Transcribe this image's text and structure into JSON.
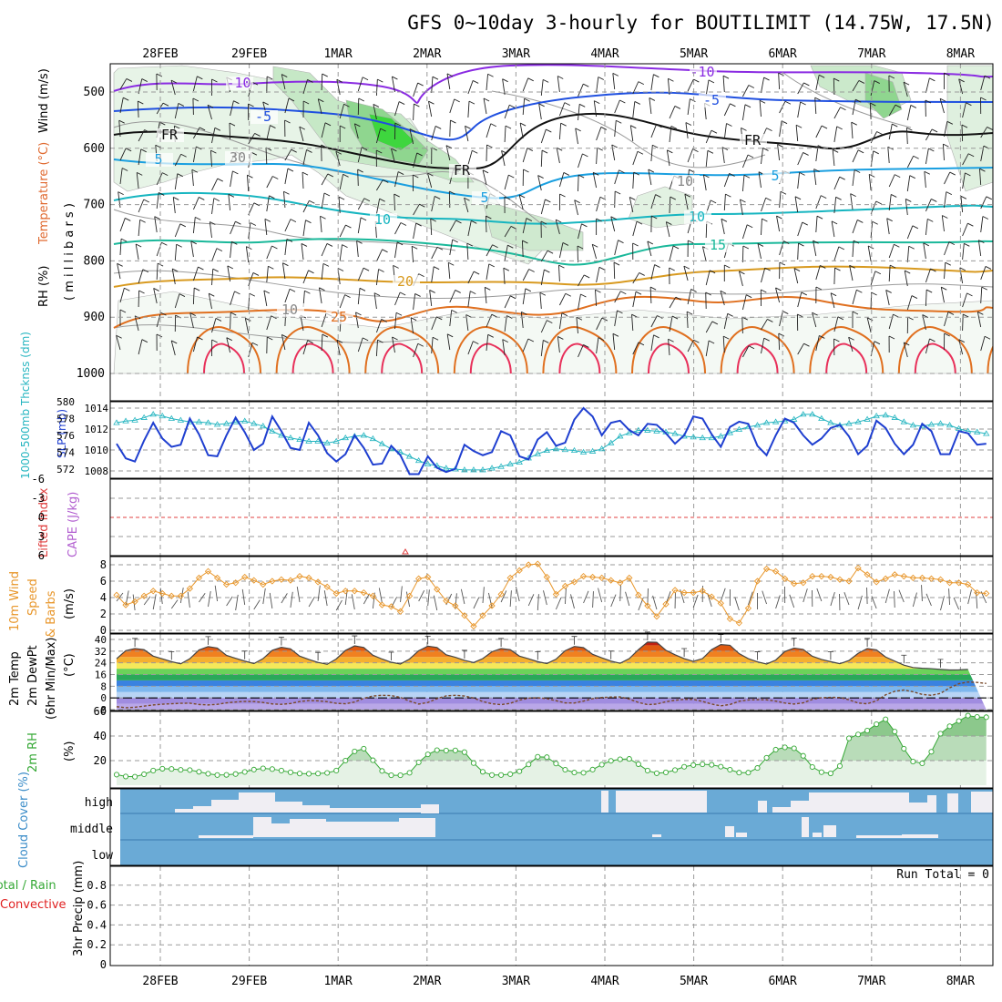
{
  "title": "GFS 0~10day 3-hourly for BOUTILIMIT (14.75W, 17.5N)",
  "colors": {
    "grid": "#9a9a9a",
    "frame": "#000000",
    "slp": "#1f3fd0",
    "thickness": "#25b5c0",
    "wind10": "#e8962a",
    "rh_green": "#35a835",
    "cloud_bg": "#6aaad6",
    "cloud_fill": "#f0eef3",
    "lifted": "#e04040",
    "cape": "#b25fd0",
    "temp_cold": "#1f3fd0",
    "temp_warm": "#e02020"
  },
  "chart_data": {
    "type": "meteogram",
    "dates": [
      "28FEB",
      "29FEB",
      "1MAR",
      "2MAR",
      "3MAR",
      "4MAR",
      "5MAR",
      "6MAR",
      "7MAR",
      "8MAR"
    ],
    "upper_air": {
      "ylabel_parts": [
        "RH (%)",
        "Temperature (°C)",
        "Wind (m/s)"
      ],
      "ylabel_unit": "( m i l l i b a r s )",
      "pressure_ticks": [
        500,
        600,
        700,
        800,
        900,
        1000
      ],
      "temp_labels": [
        "-10",
        "-5",
        "FR",
        "5",
        "10",
        "15",
        "20",
        "25",
        "-10",
        "-5",
        "FR",
        "FR",
        "5",
        "5",
        "10",
        "30",
        "10",
        "10"
      ]
    },
    "slp_thickness": {
      "label_thickness": "1000-500mb Thcknss (dm)",
      "label_slp": "SLP (mb)",
      "thickness_ticks": [
        572,
        574,
        576,
        578,
        580
      ],
      "slp_ticks": [
        1008,
        1010,
        1012,
        1014
      ],
      "slp_values": [
        1010.6,
        1009.2,
        1008.9,
        1010.9,
        1012.6,
        1011.1,
        1010.3,
        1010.5,
        1013.0,
        1011.5,
        1009.5,
        1009.4,
        1011.4,
        1013.1,
        1011.7,
        1010.0,
        1010.6,
        1013.2,
        1011.8,
        1010.2,
        1010.0,
        1012.6,
        1011.4,
        1009.7,
        1008.9,
        1009.6,
        1011.4,
        1010.2,
        1008.6,
        1008.7,
        1010.4,
        1009.5,
        1007.7,
        1007.7,
        1009.4,
        1008.3,
        1007.9,
        1008.2,
        1010.5,
        1009.9,
        1009.5,
        1009.8,
        1011.8,
        1011.4,
        1009.4,
        1009.1,
        1011.0,
        1011.7,
        1010.4,
        1010.7,
        1012.9,
        1014.0,
        1013.2,
        1011.4,
        1012.6,
        1012.8,
        1011.9,
        1011.4,
        1012.5,
        1012.4,
        1011.6,
        1010.6,
        1011.4,
        1013.2,
        1013.0,
        1011.5,
        1010.3,
        1012.2,
        1012.7,
        1012.5,
        1010.4,
        1009.5,
        1011.4,
        1013.0,
        1012.6,
        1011.4,
        1010.5,
        1011.1,
        1012.1,
        1012.4,
        1011.3,
        1009.6,
        1010.4,
        1012.8,
        1012.1,
        1010.6,
        1009.6,
        1010.5,
        1012.5,
        1011.8,
        1009.6,
        1009.6,
        1011.8,
        1011.6,
        1010.5,
        1010.6
      ],
      "thickness_values": [
        577.5,
        577.7,
        577.8,
        578.1,
        578.5,
        578.3,
        578.0,
        577.8,
        577.6,
        577.6,
        577.5,
        577.3,
        577.4,
        577.6,
        577.7,
        577.4,
        577.1,
        576.5,
        576.0,
        575.7,
        575.5,
        575.3,
        575.3,
        575.1,
        575.3,
        575.7,
        575.9,
        576.0,
        575.6,
        575.0,
        574.4,
        574.0,
        573.5,
        573.0,
        572.6,
        572.4,
        572.1,
        572.0,
        571.9,
        571.9,
        571.9,
        572.1,
        572.3,
        572.6,
        572.8,
        573.3,
        573.8,
        574.2,
        574.4,
        574.3,
        574.2,
        574.0,
        574.1,
        574.4,
        575.1,
        575.9,
        576.3,
        576.6,
        576.6,
        576.5,
        576.4,
        576.2,
        575.9,
        575.8,
        575.7,
        575.7,
        575.9,
        576.3,
        576.7,
        577.0,
        577.2,
        577.5,
        577.6,
        577.7,
        577.9,
        578.5,
        578.5,
        578.0,
        577.5,
        577.2,
        577.4,
        577.6,
        577.9,
        578.3,
        578.4,
        578.1,
        577.6,
        577.2,
        577.1,
        577.3,
        577.4,
        577.2,
        576.8,
        576.5,
        576.4,
        576.2
      ]
    },
    "cape_li": {
      "label_li": "Lifted Index",
      "label_cape": "CAPE (J/kg)",
      "li_ticks": [
        "6",
        "3",
        "0",
        "-3",
        "-6"
      ]
    },
    "wind10m": {
      "label_parts": [
        "10m Wind",
        "Speed",
        "& Barbs",
        "(m/s)"
      ],
      "ticks": [
        0,
        2,
        4,
        6,
        8
      ],
      "values": [
        4.3,
        3.1,
        3.5,
        4.2,
        4.8,
        4.5,
        4.2,
        4.2,
        5.1,
        6.4,
        7.2,
        6.4,
        5.6,
        5.8,
        6.5,
        6.1,
        5.6,
        6.0,
        6.2,
        6.1,
        6.6,
        6.4,
        5.9,
        5.3,
        4.5,
        4.8,
        4.8,
        4.6,
        4.2,
        3.1,
        2.9,
        2.3,
        4.2,
        6.3,
        6.5,
        5.0,
        3.6,
        3.0,
        1.8,
        0.5,
        1.8,
        3.0,
        4.4,
        6.4,
        7.3,
        8.0,
        8.1,
        6.5,
        4.4,
        5.4,
        5.9,
        6.6,
        6.5,
        6.4,
        6.1,
        5.8,
        6.4,
        4.3,
        3.0,
        1.7,
        3.2,
        4.9,
        4.6,
        4.6,
        4.8,
        4.1,
        3.3,
        1.4,
        0.9,
        2.7,
        6.0,
        7.5,
        7.2,
        6.3,
        5.7,
        5.8,
        6.6,
        6.6,
        6.5,
        6.2,
        6.0,
        7.6,
        6.8,
        5.9,
        6.3,
        6.8,
        6.6,
        6.4,
        6.4,
        6.3,
        6.2,
        5.8,
        5.8,
        5.6,
        4.6,
        4.5
      ]
    },
    "temp2m": {
      "label_parts": [
        "2m Temp",
        "2m DewPt",
        "(6hr Min/Max)",
        "(°C)"
      ],
      "ticks": [
        -8,
        0,
        8,
        16,
        24,
        32,
        40
      ],
      "temp_values": [
        26.8,
        32.3,
        33.8,
        33.0,
        28.6,
        26.7,
        24.8,
        23.3,
        26.8,
        32.8,
        35.1,
        34.1,
        29.1,
        27.1,
        25.2,
        23.5,
        26.9,
        32.6,
        34.6,
        33.6,
        28.6,
        26.3,
        24.3,
        23.0,
        26.7,
        32.5,
        35.6,
        34.5,
        29.2,
        26.6,
        24.4,
        23.2,
        26.6,
        32.3,
        35.4,
        34.5,
        29.5,
        27.8,
        25.7,
        24.2,
        26.9,
        31.6,
        33.8,
        33.0,
        28.6,
        26.8,
        24.8,
        23.5,
        26.5,
        32.3,
        35.2,
        34.4,
        29.8,
        27.4,
        25.2,
        23.7,
        26.9,
        33.0,
        38.2,
        38.1,
        32.6,
        29.5,
        26.9,
        25.0,
        26.9,
        33.1,
        36.5,
        36.0,
        30.3,
        26.9,
        24.7,
        23.2,
        25.9,
        31.7,
        34.1,
        33.2,
        28.5,
        26.3,
        24.8,
        23.4,
        25.6,
        30.5,
        33.8,
        32.9,
        28.0,
        25.2,
        22.4,
        20.8,
        20.3,
        20.0,
        19.5,
        19.1,
        19.2,
        19.5
      ],
      "dew_values": [
        -6.0,
        -6.7,
        -6.4,
        -5.6,
        -4.8,
        -4.3,
        -4.0,
        -3.7,
        -3.6,
        -4.5,
        -4.8,
        -4.4,
        -3.4,
        -2.8,
        -2.4,
        -2.5,
        -3.1,
        -4.1,
        -4.4,
        -3.8,
        -2.5,
        -1.8,
        -2.0,
        -2.6,
        -3.7,
        -4.0,
        -2.8,
        -0.3,
        1.3,
        1.8,
        1.6,
        0.4,
        -2.2,
        -4.2,
        -3.1,
        -0.5,
        1.4,
        1.8,
        1.3,
        -0.1,
        -2.5,
        -4.0,
        -4.6,
        -3.7,
        -1.5,
        -0.2,
        0.1,
        -0.5,
        -1.9,
        -3.4,
        -3.5,
        -2.2,
        -0.5,
        0.3,
        0.6,
        0.7,
        -0.8,
        -3.1,
        -4.6,
        -4.2,
        -2.6,
        -1.6,
        -1.0,
        -1.0,
        -2.4,
        -4.2,
        -5.4,
        -4.5,
        -2.3,
        -1.4,
        -1.2,
        -1.3,
        -2.2,
        -3.5,
        -4.2,
        -3.4,
        -1.0,
        0.1,
        0.4,
        0.3,
        -1.3,
        -3.5,
        -4.0,
        -2.0,
        2.1,
        4.5,
        5.4,
        4.2,
        2.4,
        1.8,
        3.1,
        6.9,
        9.7,
        10.9,
        10.6,
        9.9
      ]
    },
    "rh2m": {
      "label_parts": [
        "2m RH",
        "(%)"
      ],
      "ticks": [
        20,
        40,
        60
      ],
      "values": [
        8.6,
        7.1,
        6.9,
        8.9,
        11.9,
        13.4,
        13.2,
        12.5,
        12.3,
        10.9,
        9.3,
        8.3,
        8.4,
        9.1,
        10.8,
        12.7,
        13.7,
        13.1,
        11.9,
        10.5,
        9.5,
        9.3,
        9.5,
        10.0,
        11.9,
        20.0,
        27.5,
        29.7,
        20.3,
        11.6,
        8.1,
        8.1,
        10.1,
        18.6,
        25.1,
        28.5,
        28.2,
        28.3,
        26.9,
        18.0,
        10.9,
        8.3,
        8.3,
        9.0,
        11.3,
        16.9,
        23.1,
        22.8,
        17.6,
        12.6,
        10.3,
        10.1,
        12.7,
        16.7,
        19.8,
        21.1,
        21.4,
        17.1,
        11.9,
        9.7,
        10.4,
        12.3,
        15.0,
        16.4,
        17.0,
        16.6,
        15.1,
        12.6,
        10.2,
        10.2,
        14.0,
        22.3,
        28.9,
        30.8,
        30.0,
        23.9,
        14.8,
        10.6,
        9.6,
        15.6,
        38.1,
        41.3,
        44.4,
        49.6,
        53.6,
        43.6,
        29.7,
        19.2,
        17.8,
        27.2,
        41.9,
        47.9,
        52.2,
        56.6,
        55.5,
        55.3
      ]
    },
    "cloud": {
      "label": "Cloud Cover (%)",
      "levels": [
        "high",
        "middle",
        "low"
      ]
    },
    "precip": {
      "label_parts": [
        "Total / Rain",
        "Convective",
        "3hr Precip (mm)"
      ],
      "ticks": [
        "0",
        "0.2",
        "0.4",
        "0.6",
        "0.8"
      ],
      "run_total": "Run Total = 0"
    }
  }
}
